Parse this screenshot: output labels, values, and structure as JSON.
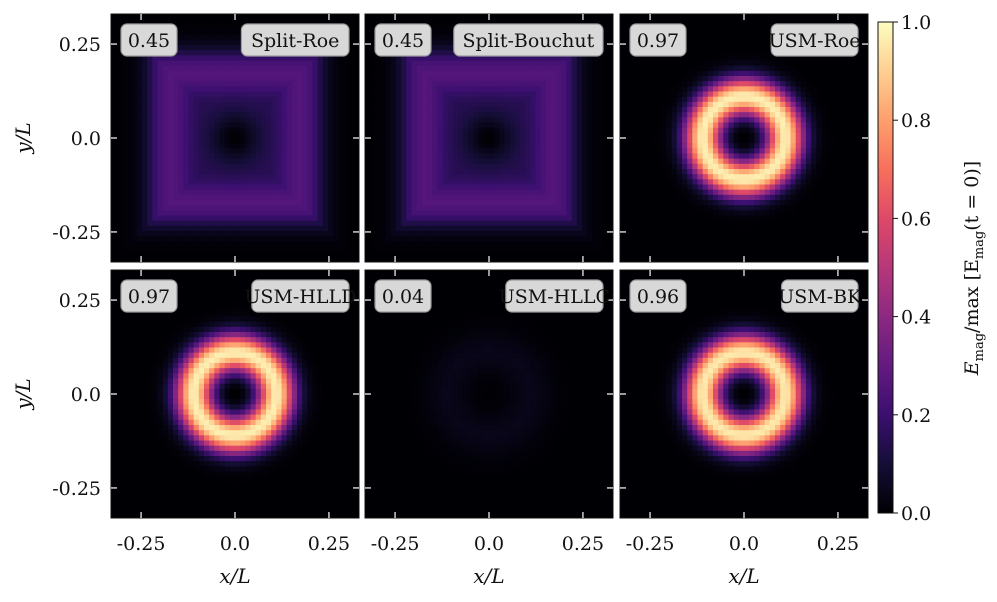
{
  "chart_data": {
    "type": "heatmap",
    "layout": {
      "rows": 2,
      "cols": 3
    },
    "xlabel": "x/L",
    "ylabel": "y/L",
    "xlim": [
      -0.33,
      0.33
    ],
    "ylim": [
      -0.33,
      0.33
    ],
    "xticks": [
      -0.25,
      0.0,
      0.25
    ],
    "xtick_labels": [
      "-0.25",
      "0.0",
      "0.25"
    ],
    "yticks": [
      0.25,
      0.0,
      -0.25
    ],
    "ytick_labels": [
      "0.25",
      "0.0",
      "-0.25"
    ],
    "colormap": "magma",
    "colorbar": {
      "label_parts": [
        "E",
        "mag",
        "/max [E",
        "mag",
        "(t = 0)]"
      ],
      "range": [
        0.0,
        1.0
      ],
      "ticks": [
        0.0,
        0.2,
        0.4,
        0.6,
        0.8,
        1.0
      ],
      "tick_labels": [
        "0.0",
        "0.2",
        "0.4",
        "0.6",
        "0.8",
        "1.0"
      ]
    },
    "panels": [
      {
        "name": "Split-Roe",
        "value_label": "0.45",
        "pattern": "square",
        "peak": 0.26
      },
      {
        "name": "Split-Bouchut",
        "value_label": "0.45",
        "pattern": "square",
        "peak": 0.26
      },
      {
        "name": "USM-Roe",
        "value_label": "0.97",
        "pattern": "ring",
        "peak": 0.97
      },
      {
        "name": "USM-HLLD",
        "value_label": "0.97",
        "pattern": "ring",
        "peak": 0.97
      },
      {
        "name": "USM-HLLC",
        "value_label": "0.04",
        "pattern": "faint",
        "peak": 0.04
      },
      {
        "name": "USM-BK",
        "value_label": "0.96",
        "pattern": "ring",
        "peak": 0.96
      }
    ]
  }
}
